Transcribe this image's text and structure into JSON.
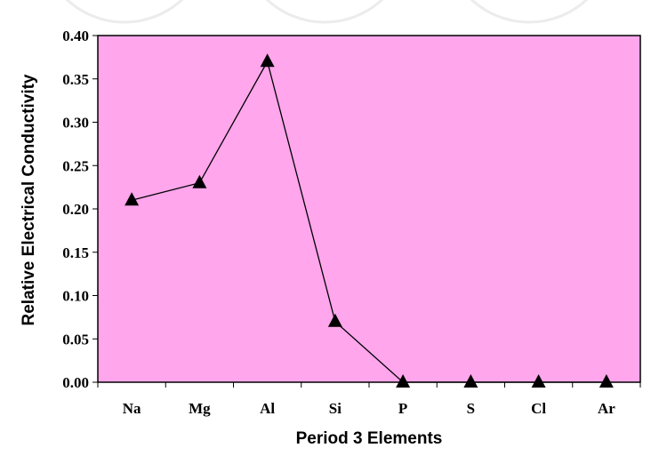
{
  "chart_data": {
    "type": "line",
    "title": "",
    "xlabel": "Period 3 Elements",
    "ylabel": "Relative Electrical Conductivity",
    "categories": [
      "Na",
      "Mg",
      "Al",
      "Si",
      "P",
      "S",
      "Cl",
      "Ar"
    ],
    "series": [
      {
        "values": [
          0.21,
          0.23,
          0.37,
          0.07,
          0.0,
          0.0,
          0.0,
          0.0
        ],
        "marker": "triangle",
        "color": "#000000"
      }
    ],
    "ylim": [
      0,
      0.4
    ],
    "yticks": [
      "0.00",
      "0.05",
      "0.10",
      "0.15",
      "0.20",
      "0.25",
      "0.30",
      "0.35",
      "0.40"
    ],
    "grid": false,
    "legend": "none",
    "plot_background": "#ffa6ec"
  }
}
